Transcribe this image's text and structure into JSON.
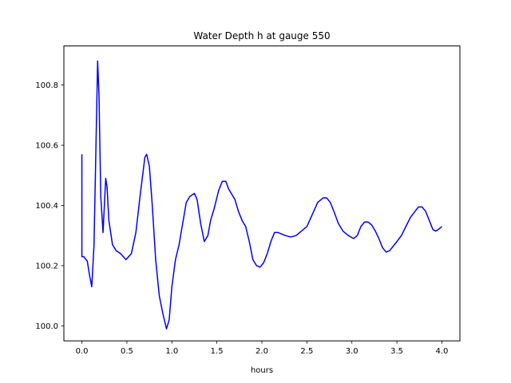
{
  "chart_data": {
    "type": "line",
    "title": "Water Depth h at gauge 550",
    "xlabel": "hours",
    "ylabel": "",
    "xlim": [
      -0.2,
      4.2
    ],
    "ylim": [
      99.95,
      100.93
    ],
    "grid": false,
    "x_ticks": [
      0.0,
      0.5,
      1.0,
      1.5,
      2.0,
      2.5,
      3.0,
      3.5,
      4.0
    ],
    "x_tick_labels": [
      "0.0",
      "0.5",
      "1.0",
      "1.5",
      "2.0",
      "2.5",
      "3.0",
      "3.5",
      "4.0"
    ],
    "y_ticks": [
      100.0,
      100.2,
      100.4,
      100.6,
      100.8
    ],
    "y_tick_labels": [
      "100.0",
      "100.2",
      "100.4",
      "100.6",
      "100.8"
    ],
    "series": [
      {
        "color": "#0000ff",
        "x": [
          0.0,
          0.0,
          0.02,
          0.06,
          0.09,
          0.11,
          0.135,
          0.16,
          0.175,
          0.19,
          0.21,
          0.235,
          0.265,
          0.28,
          0.3,
          0.34,
          0.38,
          0.43,
          0.49,
          0.55,
          0.6,
          0.65,
          0.7,
          0.72,
          0.75,
          0.78,
          0.82,
          0.86,
          0.9,
          0.94,
          0.97,
          1.0,
          1.04,
          1.08,
          1.12,
          1.16,
          1.2,
          1.25,
          1.28,
          1.32,
          1.36,
          1.4,
          1.43,
          1.47,
          1.52,
          1.56,
          1.6,
          1.63,
          1.66,
          1.7,
          1.74,
          1.78,
          1.82,
          1.86,
          1.9,
          1.94,
          1.98,
          2.02,
          2.06,
          2.1,
          2.14,
          2.18,
          2.22,
          2.26,
          2.32,
          2.38,
          2.44,
          2.5,
          2.56,
          2.62,
          2.68,
          2.72,
          2.76,
          2.8,
          2.85,
          2.9,
          2.96,
          3.02,
          3.06,
          3.1,
          3.14,
          3.18,
          3.22,
          3.26,
          3.3,
          3.34,
          3.38,
          3.42,
          3.46,
          3.5,
          3.55,
          3.6,
          3.65,
          3.7,
          3.74,
          3.78,
          3.82,
          3.86,
          3.9,
          3.93,
          3.96,
          4.0
        ],
        "y": [
          100.57,
          100.23,
          100.23,
          100.215,
          100.16,
          100.13,
          100.27,
          100.65,
          100.88,
          100.77,
          100.43,
          100.31,
          100.49,
          100.46,
          100.35,
          100.27,
          100.25,
          100.24,
          100.22,
          100.24,
          100.31,
          100.44,
          100.56,
          100.57,
          100.53,
          100.41,
          100.22,
          100.1,
          100.04,
          99.99,
          100.02,
          100.13,
          100.22,
          100.27,
          100.34,
          100.41,
          100.43,
          100.44,
          100.42,
          100.34,
          100.28,
          100.3,
          100.35,
          100.39,
          100.45,
          100.48,
          100.48,
          100.455,
          100.44,
          100.42,
          100.38,
          100.35,
          100.33,
          100.28,
          100.22,
          100.2,
          100.195,
          100.21,
          100.24,
          100.28,
          100.31,
          100.31,
          100.305,
          100.3,
          100.295,
          100.3,
          100.315,
          100.33,
          100.37,
          100.41,
          100.425,
          100.425,
          100.41,
          100.38,
          100.34,
          100.315,
          100.3,
          100.29,
          100.3,
          100.33,
          100.345,
          100.345,
          100.335,
          100.315,
          100.29,
          100.26,
          100.245,
          100.25,
          100.265,
          100.28,
          100.3,
          100.33,
          100.36,
          100.38,
          100.395,
          100.395,
          100.38,
          100.35,
          100.32,
          100.315,
          100.32,
          100.33
        ]
      }
    ]
  }
}
